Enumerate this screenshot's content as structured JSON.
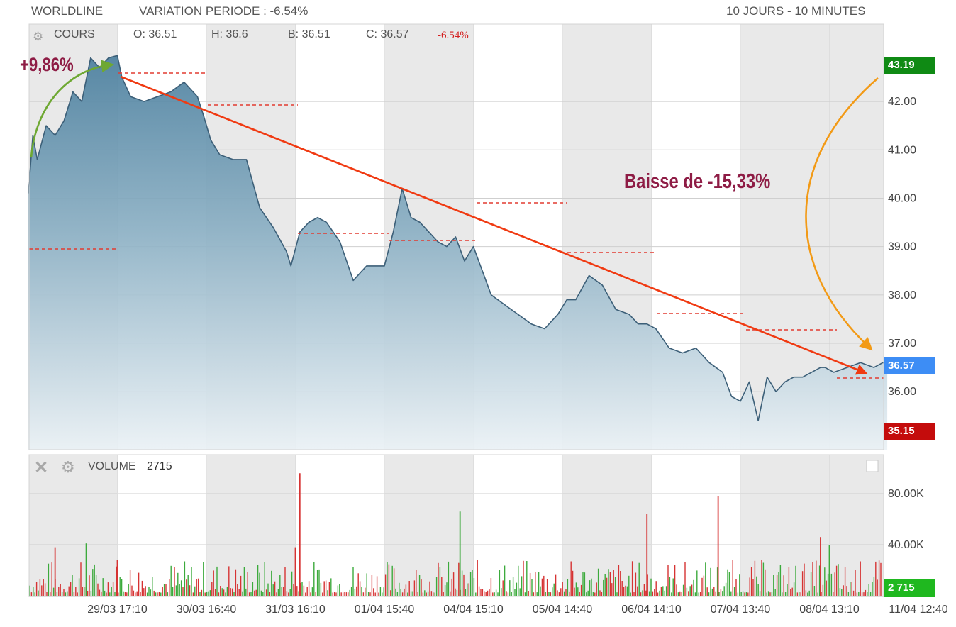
{
  "header": {
    "ticker": "WORLDLINE",
    "variation": "VARIATION PERIODE : -6.54%",
    "period": "10 JOURS - 10 MINUTES"
  },
  "cours_bar": {
    "label": "COURS",
    "open": "O: 36.51",
    "high": "H: 36.6",
    "low": "B: 36.51",
    "close": "C: 36.57",
    "change": "-6.54%"
  },
  "volume_bar": {
    "label": "VOLUME",
    "value": "2715"
  },
  "annotations": {
    "gain": "+9,86%",
    "drop": "Baisse de -15,33%"
  },
  "badges": {
    "high": "43.19",
    "last": "36.57",
    "low": "35.15",
    "volume_last": "2 715"
  },
  "colors": {
    "high_badge": "#0f8a14",
    "last_badge": "#3d8df5",
    "low_badge": "#c40c0c",
    "line": "#3c5f78",
    "trend": "#f03a12",
    "gain_arrow": "#6ea832",
    "orange_arrow": "#f29a16",
    "annotation": "#8e1c45",
    "vol_up": "#3caa3c",
    "vol_down": "#d63333"
  },
  "chart_data": [
    {
      "type": "area",
      "title": "COURS",
      "x_ticks": [
        "29/03 17:10",
        "30/03 16:40",
        "31/03 16:10",
        "01/04 15:40",
        "04/04 15:10",
        "05/04 14:40",
        "06/04 14:10",
        "07/04 13:40",
        "08/04 13:10",
        "11/04 12:40"
      ],
      "y_ticks": [
        36.0,
        37.0,
        38.0,
        39.0,
        40.0,
        41.0,
        42.0
      ],
      "ylim": [
        34.8,
        43.6
      ],
      "grid": true,
      "x_unit": "session",
      "xlim": [
        0,
        9.65
      ],
      "series": [
        {
          "x": [
            0,
            0.05,
            0.1,
            0.2,
            0.3,
            0.4,
            0.5,
            0.6,
            0.7,
            0.8,
            0.9,
            1.0,
            1.05,
            1.15,
            1.3,
            1.45,
            1.6,
            1.75,
            1.9,
            1.97,
            2.05,
            2.15,
            2.3,
            2.45,
            2.6,
            2.75,
            2.9,
            2.95,
            3.05,
            3.15,
            3.25,
            3.35,
            3.5,
            3.65,
            3.8,
            3.9,
            4.0,
            4.1,
            4.2,
            4.3,
            4.4,
            4.5,
            4.6,
            4.7,
            4.8,
            4.9,
            5.0,
            5.2,
            5.35,
            5.5,
            5.65,
            5.8,
            5.95,
            6.05,
            6.15,
            6.3,
            6.45,
            6.6,
            6.75,
            6.85,
            6.95,
            7.05,
            7.2,
            7.35,
            7.5,
            7.65,
            7.8,
            7.9,
            8.0,
            8.1,
            8.2,
            8.3,
            8.4,
            8.5,
            8.6,
            8.7,
            8.8,
            8.9,
            8.95,
            9.05,
            9.2,
            9.35,
            9.5,
            9.6,
            9.65
          ],
          "y": [
            40.1,
            41.3,
            40.8,
            41.5,
            41.3,
            41.6,
            42.2,
            42.0,
            42.9,
            42.7,
            42.9,
            42.95,
            42.5,
            42.1,
            42.0,
            42.1,
            42.2,
            42.4,
            42.1,
            41.7,
            41.2,
            40.9,
            40.8,
            40.8,
            39.8,
            39.4,
            38.9,
            38.6,
            39.3,
            39.5,
            39.6,
            39.5,
            39.1,
            38.3,
            38.6,
            38.6,
            38.6,
            39.3,
            40.2,
            39.6,
            39.5,
            39.3,
            39.1,
            39.0,
            39.2,
            38.7,
            39.0,
            38.0,
            37.8,
            37.6,
            37.4,
            37.3,
            37.6,
            37.9,
            37.9,
            38.4,
            38.2,
            37.7,
            37.6,
            37.4,
            37.4,
            37.3,
            36.9,
            36.8,
            36.9,
            36.6,
            36.4,
            35.9,
            35.8,
            36.2,
            35.4,
            36.3,
            36.0,
            36.2,
            36.3,
            36.3,
            36.4,
            36.5,
            36.5,
            36.4,
            36.5,
            36.6,
            36.5,
            36.6,
            36.57
          ]
        }
      ]
    },
    {
      "type": "bar",
      "title": "VOLUME",
      "y_ticks": [
        "40.00K",
        "80.00K"
      ],
      "ylim": [
        0,
        100000
      ],
      "grid": true,
      "x_unit": "session",
      "xlim": [
        0,
        9.65
      ],
      "spikes": [
        {
          "x": 0.3,
          "v": 38000,
          "dir": "down"
        },
        {
          "x": 0.65,
          "v": 41000,
          "dir": "up"
        },
        {
          "x": 1.0,
          "v": 28000,
          "dir": "down"
        },
        {
          "x": 3.05,
          "v": 96000,
          "dir": "down"
        },
        {
          "x": 3.0,
          "v": 38000,
          "dir": "down"
        },
        {
          "x": 4.85,
          "v": 66000,
          "dir": "up"
        },
        {
          "x": 6.95,
          "v": 64000,
          "dir": "down"
        },
        {
          "x": 7.75,
          "v": 78000,
          "dir": "down"
        },
        {
          "x": 8.9,
          "v": 46000,
          "dir": "down"
        },
        {
          "x": 9.0,
          "v": 40000,
          "dir": "up"
        }
      ]
    }
  ]
}
